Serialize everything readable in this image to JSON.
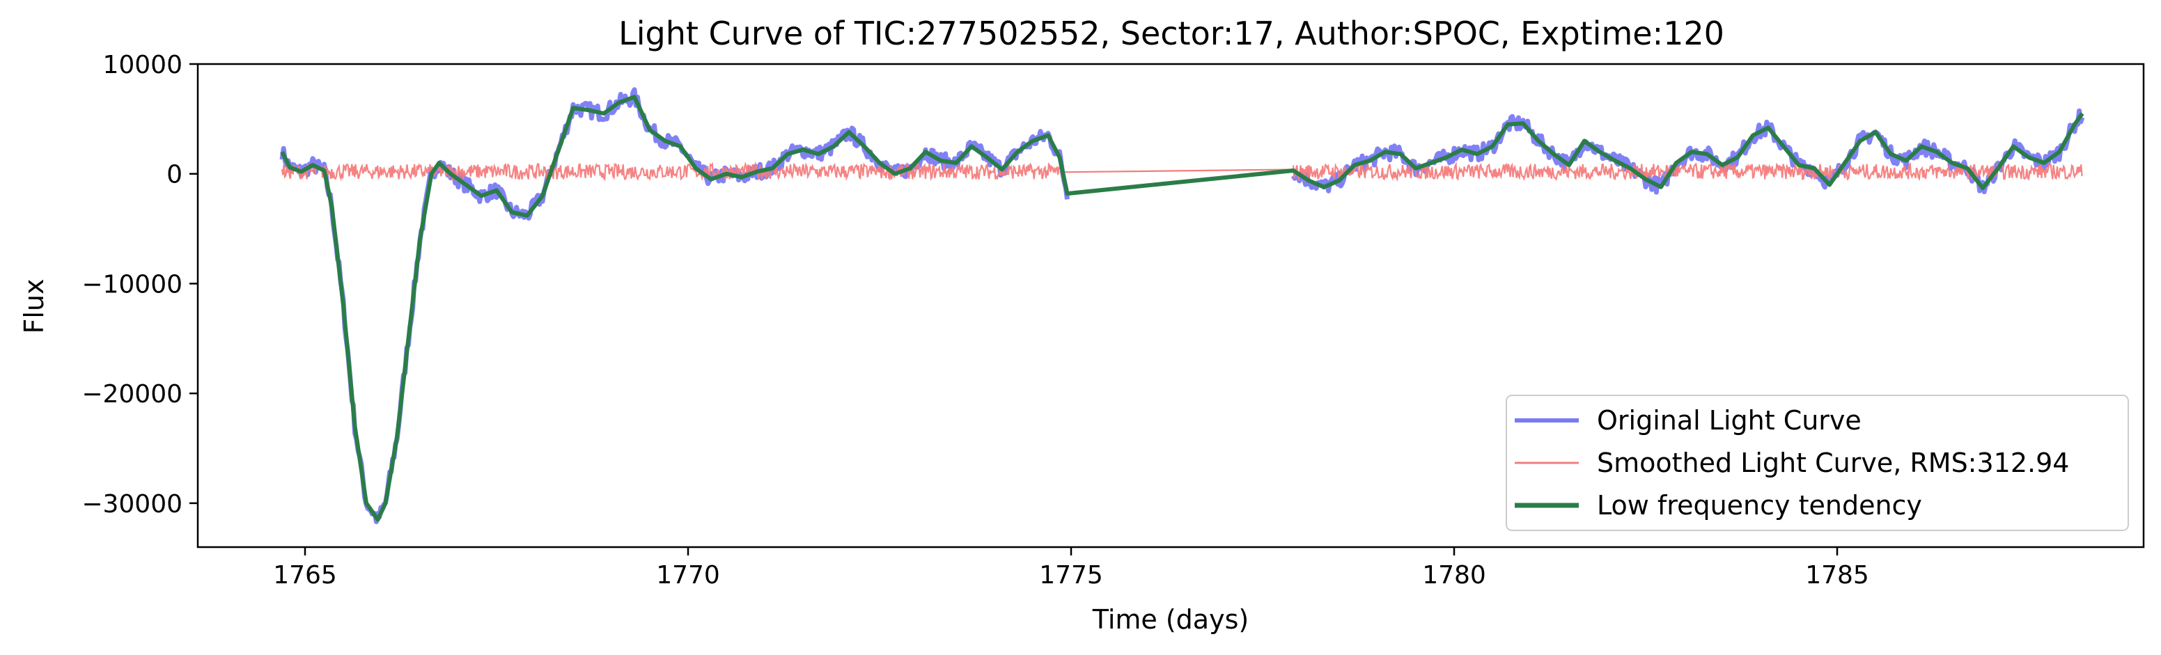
{
  "chart_data": {
    "type": "line",
    "title": "Light Curve of TIC:277502552, Sector:17, Author:SPOC, Exptime:120",
    "xlabel": "Time (days)",
    "ylabel": "Flux",
    "xlim": [
      1763.6,
      1789.0
    ],
    "ylim": [
      -34000,
      10000
    ],
    "xticks": [
      1765,
      1770,
      1775,
      1780,
      1785
    ],
    "yticks": [
      10000,
      0,
      -10000,
      -20000,
      -30000
    ],
    "xtick_labels": [
      "1765",
      "1770",
      "1775",
      "1780",
      "1785"
    ],
    "ytick_labels": [
      "10000",
      "0",
      "−10000",
      "−20000",
      "−30000"
    ],
    "grid": false,
    "legend_position": "lower-right",
    "gap": [
      1774.9,
      1777.9
    ],
    "series": [
      {
        "name": "Original Light Curve",
        "color": "#7a7af5",
        "style": "thick-noisy",
        "x": [
          1764.7,
          1764.8,
          1764.95,
          1765.1,
          1765.25,
          1765.35,
          1765.5,
          1765.65,
          1765.8,
          1765.95,
          1766.05,
          1766.2,
          1766.35,
          1766.5,
          1766.65,
          1766.75,
          1766.9,
          1767.1,
          1767.3,
          1767.5,
          1767.7,
          1767.9,
          1768.1,
          1768.3,
          1768.5,
          1768.7,
          1768.9,
          1769.1,
          1769.3,
          1769.5,
          1769.7,
          1769.9,
          1770.1,
          1770.3,
          1770.5,
          1770.7,
          1770.9,
          1771.1,
          1771.3,
          1771.5,
          1771.7,
          1771.9,
          1772.1,
          1772.3,
          1772.5,
          1772.7,
          1772.9,
          1773.1,
          1773.3,
          1773.5,
          1773.7,
          1773.9,
          1774.1,
          1774.3,
          1774.5,
          1774.7,
          1774.85,
          1774.95,
          1777.9,
          1778.1,
          1778.3,
          1778.5,
          1778.7,
          1778.9,
          1779.1,
          1779.3,
          1779.5,
          1779.7,
          1779.9,
          1780.1,
          1780.3,
          1780.5,
          1780.7,
          1780.9,
          1781.1,
          1781.3,
          1781.5,
          1781.7,
          1781.9,
          1782.1,
          1782.3,
          1782.5,
          1782.7,
          1782.9,
          1783.1,
          1783.3,
          1783.5,
          1783.7,
          1783.9,
          1784.1,
          1784.3,
          1784.5,
          1784.7,
          1784.9,
          1785.1,
          1785.3,
          1785.5,
          1785.7,
          1785.9,
          1786.1,
          1786.3,
          1786.5,
          1786.7,
          1786.9,
          1787.1,
          1787.3,
          1787.5,
          1787.7,
          1787.9,
          1788.1,
          1788.2
        ],
        "y": [
          2000,
          600,
          200,
          800,
          300,
          -3000,
          -12000,
          -23000,
          -30000,
          -31500,
          -30000,
          -24000,
          -15000,
          -6000,
          0,
          1000,
          0,
          -1000,
          -2000,
          -1500,
          -3500,
          -3800,
          -2000,
          2000,
          6000,
          5800,
          5500,
          6500,
          7000,
          4000,
          3000,
          2500,
          500,
          -500,
          0,
          -300,
          200,
          500,
          1800,
          2200,
          1800,
          2500,
          3800,
          2500,
          1000,
          0,
          500,
          2000,
          1200,
          1000,
          2500,
          1500,
          400,
          2000,
          3000,
          3500,
          1500,
          -1800,
          300,
          -600,
          -1200,
          -600,
          800,
          1200,
          2000,
          1800,
          500,
          1000,
          1500,
          2200,
          1800,
          2500,
          4500,
          4600,
          3000,
          1800,
          800,
          3000,
          2000,
          1200,
          500,
          -500,
          -1200,
          1000,
          2000,
          1800,
          800,
          1500,
          3500,
          4200,
          2500,
          800,
          500,
          -1000,
          1000,
          3000,
          3800,
          1800,
          1200,
          2500,
          2000,
          1000,
          500,
          -1300,
          500,
          2500,
          1500,
          1000,
          2000,
          4500,
          5500
        ]
      },
      {
        "name": "Smoothed Light Curve, RMS:312.94",
        "color": "#f57c7c",
        "style": "noise",
        "x_start": 1764.7,
        "x_end": 1788.2,
        "mean": 200,
        "amplitude": 700,
        "connector": [
          [
            1774.85,
            150
          ],
          [
            1777.95,
            400
          ]
        ]
      },
      {
        "name": "Low frequency tendency",
        "color": "#2a7d47",
        "style": "thick",
        "x": [
          1764.7,
          1764.8,
          1764.95,
          1765.1,
          1765.25,
          1765.35,
          1765.5,
          1765.65,
          1765.8,
          1765.95,
          1766.05,
          1766.2,
          1766.35,
          1766.5,
          1766.65,
          1766.75,
          1766.9,
          1767.1,
          1767.3,
          1767.5,
          1767.7,
          1767.9,
          1768.1,
          1768.3,
          1768.5,
          1768.7,
          1768.9,
          1769.1,
          1769.3,
          1769.5,
          1769.7,
          1769.9,
          1770.1,
          1770.3,
          1770.5,
          1770.7,
          1770.9,
          1771.1,
          1771.3,
          1771.5,
          1771.7,
          1771.9,
          1772.1,
          1772.3,
          1772.5,
          1772.7,
          1772.9,
          1773.1,
          1773.3,
          1773.5,
          1773.7,
          1773.9,
          1774.1,
          1774.3,
          1774.5,
          1774.7,
          1774.85,
          1774.95,
          1777.9,
          1778.1,
          1778.3,
          1778.5,
          1778.7,
          1778.9,
          1779.1,
          1779.3,
          1779.5,
          1779.7,
          1779.9,
          1780.1,
          1780.3,
          1780.5,
          1780.7,
          1780.9,
          1781.1,
          1781.3,
          1781.5,
          1781.7,
          1781.9,
          1782.1,
          1782.3,
          1782.5,
          1782.7,
          1782.9,
          1783.1,
          1783.3,
          1783.5,
          1783.7,
          1783.9,
          1784.1,
          1784.3,
          1784.5,
          1784.7,
          1784.9,
          1785.1,
          1785.3,
          1785.5,
          1785.7,
          1785.9,
          1786.1,
          1786.3,
          1786.5,
          1786.7,
          1786.9,
          1787.1,
          1787.3,
          1787.5,
          1787.7,
          1787.9,
          1788.1,
          1788.2
        ],
        "y": [
          2000,
          600,
          200,
          800,
          300,
          -3000,
          -12000,
          -23000,
          -30000,
          -31500,
          -30000,
          -24000,
          -15000,
          -6000,
          0,
          1000,
          0,
          -1000,
          -2000,
          -1500,
          -3500,
          -3800,
          -2000,
          2000,
          6000,
          5800,
          5500,
          6500,
          7000,
          4000,
          3000,
          2500,
          500,
          -500,
          0,
          -300,
          200,
          500,
          1800,
          2200,
          1800,
          2500,
          3800,
          2500,
          1000,
          0,
          500,
          2000,
          1200,
          1000,
          2500,
          1500,
          400,
          2000,
          3000,
          3500,
          1500,
          -1800,
          300,
          -600,
          -1200,
          -600,
          800,
          1200,
          2000,
          1800,
          500,
          1000,
          1500,
          2200,
          1800,
          2500,
          4500,
          4600,
          3000,
          1800,
          800,
          3000,
          2000,
          1200,
          500,
          -500,
          -1200,
          1000,
          2000,
          1800,
          800,
          1500,
          3500,
          4200,
          2500,
          800,
          500,
          -1000,
          1000,
          3000,
          3800,
          1800,
          1200,
          2500,
          2000,
          1000,
          500,
          -1300,
          500,
          2500,
          1500,
          1000,
          2000,
          4500,
          5500
        ]
      }
    ]
  }
}
